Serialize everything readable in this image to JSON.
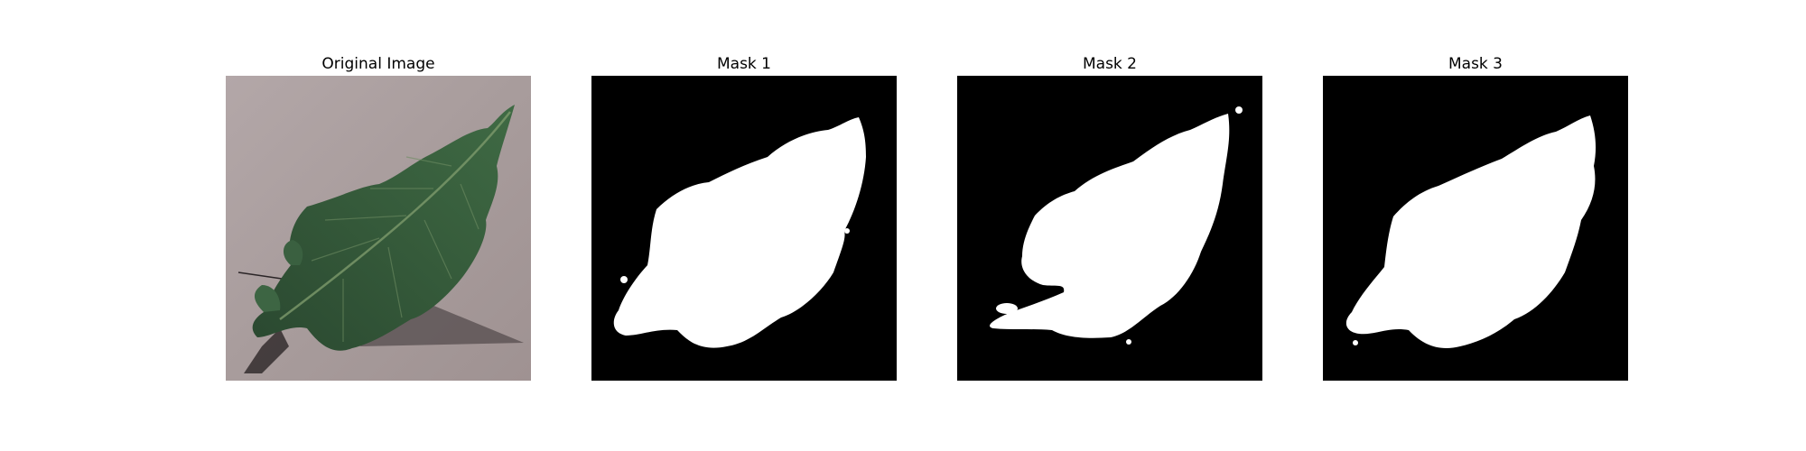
{
  "panels": [
    {
      "title": "Original Image",
      "kind": "photo",
      "subject": "leaf-photo"
    },
    {
      "title": "Mask 1",
      "kind": "mask",
      "subject": "leaf-mask"
    },
    {
      "title": "Mask 2",
      "kind": "mask",
      "subject": "leaf-mask"
    },
    {
      "title": "Mask 3",
      "kind": "mask",
      "subject": "leaf-mask"
    }
  ],
  "colors": {
    "background": "#ffffff",
    "mask_background": "#000000",
    "mask_foreground": "#ffffff",
    "surface": "#a59898",
    "leaf_dark": "#2d4a32",
    "leaf_mid": "#4a6d4b",
    "leaf_vein": "#7a9a6a",
    "shadow": "#5b5252"
  }
}
